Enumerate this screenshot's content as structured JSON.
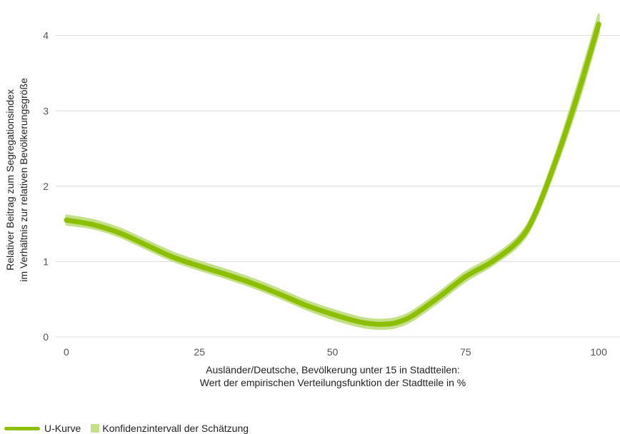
{
  "colors": {
    "curve": "#8cbf00",
    "band": "#c5e08a",
    "grid": "#d9d9d9"
  },
  "chart_data": {
    "type": "line",
    "xlabel": [
      "Ausländer/Deutsche, Bevölkerung unter 15 in Stadtteilen:",
      "Wert der empirischen Verteilungsfunktion der Stadtteile in %"
    ],
    "ylabel": [
      "Relativer Beitrag zum Segregationsindex",
      "im Verhältnis zur relativen Bevölkerungsgröße"
    ],
    "xlim": [
      -2,
      104
    ],
    "ylim": [
      0,
      4.3
    ],
    "xticks": [
      0,
      25,
      50,
      75,
      100
    ],
    "yticks": [
      0,
      1,
      2,
      3,
      4
    ],
    "grid": true,
    "legend_position": "bottom-left",
    "series": [
      {
        "name": "U-Kurve",
        "x": [
          0,
          5,
          10,
          15,
          20,
          25,
          30,
          35,
          40,
          45,
          50,
          55,
          58,
          60,
          62,
          65,
          70,
          75,
          80,
          85,
          88,
          92,
          96,
          100
        ],
        "y": [
          1.55,
          1.49,
          1.38,
          1.22,
          1.06,
          0.94,
          0.83,
          0.71,
          0.57,
          0.42,
          0.3,
          0.2,
          0.17,
          0.17,
          0.19,
          0.28,
          0.53,
          0.8,
          1.0,
          1.28,
          1.62,
          2.35,
          3.2,
          4.15
        ]
      },
      {
        "name": "Konfidenzintervall der Schätzung",
        "x": [
          0,
          5,
          10,
          15,
          20,
          25,
          30,
          35,
          40,
          45,
          50,
          55,
          58,
          60,
          62,
          65,
          70,
          75,
          80,
          85,
          88,
          92,
          96,
          100
        ],
        "lower": [
          1.49,
          1.44,
          1.33,
          1.17,
          1.01,
          0.89,
          0.78,
          0.66,
          0.52,
          0.37,
          0.24,
          0.14,
          0.11,
          0.11,
          0.13,
          0.22,
          0.47,
          0.74,
          0.95,
          1.22,
          1.55,
          2.26,
          3.08,
          4.03
        ],
        "upper": [
          1.61,
          1.55,
          1.44,
          1.28,
          1.12,
          1.0,
          0.89,
          0.77,
          0.63,
          0.48,
          0.36,
          0.26,
          0.23,
          0.23,
          0.25,
          0.34,
          0.59,
          0.86,
          1.06,
          1.34,
          1.69,
          2.44,
          3.33,
          4.28
        ]
      }
    ]
  },
  "legend": {
    "curve_label": "U-Kurve",
    "band_label": "Konfidenzintervall der Schätzung"
  }
}
